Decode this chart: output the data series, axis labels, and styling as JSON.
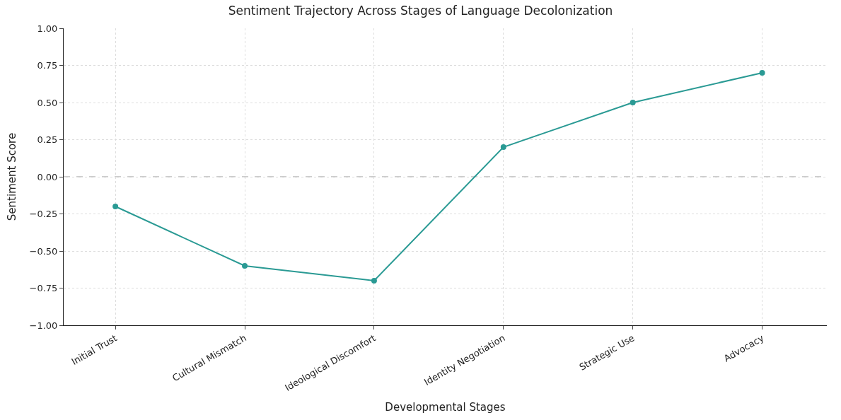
{
  "chart_data": {
    "type": "line",
    "title": "Sentiment Trajectory Across Stages of Language Decolonization",
    "xlabel": "Developmental Stages",
    "ylabel": "Sentiment Score",
    "categories": [
      "Initial Trust",
      "Cultural Mismatch",
      "Ideological Discomfort",
      "Identity Negotiation",
      "Strategic Use",
      "Advocacy"
    ],
    "series": [
      {
        "color": "#2a9a94",
        "values": [
          -0.2,
          -0.6,
          -0.7,
          0.2,
          0.5,
          0.7
        ]
      }
    ],
    "ylim": [
      -1.0,
      1.0
    ],
    "yticks": [
      {
        "value": -1.0,
        "label": "−1.00"
      },
      {
        "value": -0.75,
        "label": "−0.75"
      },
      {
        "value": -0.5,
        "label": "−0.50"
      },
      {
        "value": -0.25,
        "label": "−0.25"
      },
      {
        "value": 0,
        "label": "0.00"
      },
      {
        "value": 0.25,
        "label": "0.25"
      },
      {
        "value": 0.5,
        "label": "0.50"
      },
      {
        "value": 0.75,
        "label": "0.75"
      },
      {
        "value": 1.0,
        "label": "1.00"
      }
    ],
    "ref_lines": [
      {
        "axis": "y",
        "value": 0,
        "color": "#999999",
        "line_style": "dashed"
      }
    ],
    "grid": true,
    "marker": "circle",
    "line_style": "solid"
  }
}
